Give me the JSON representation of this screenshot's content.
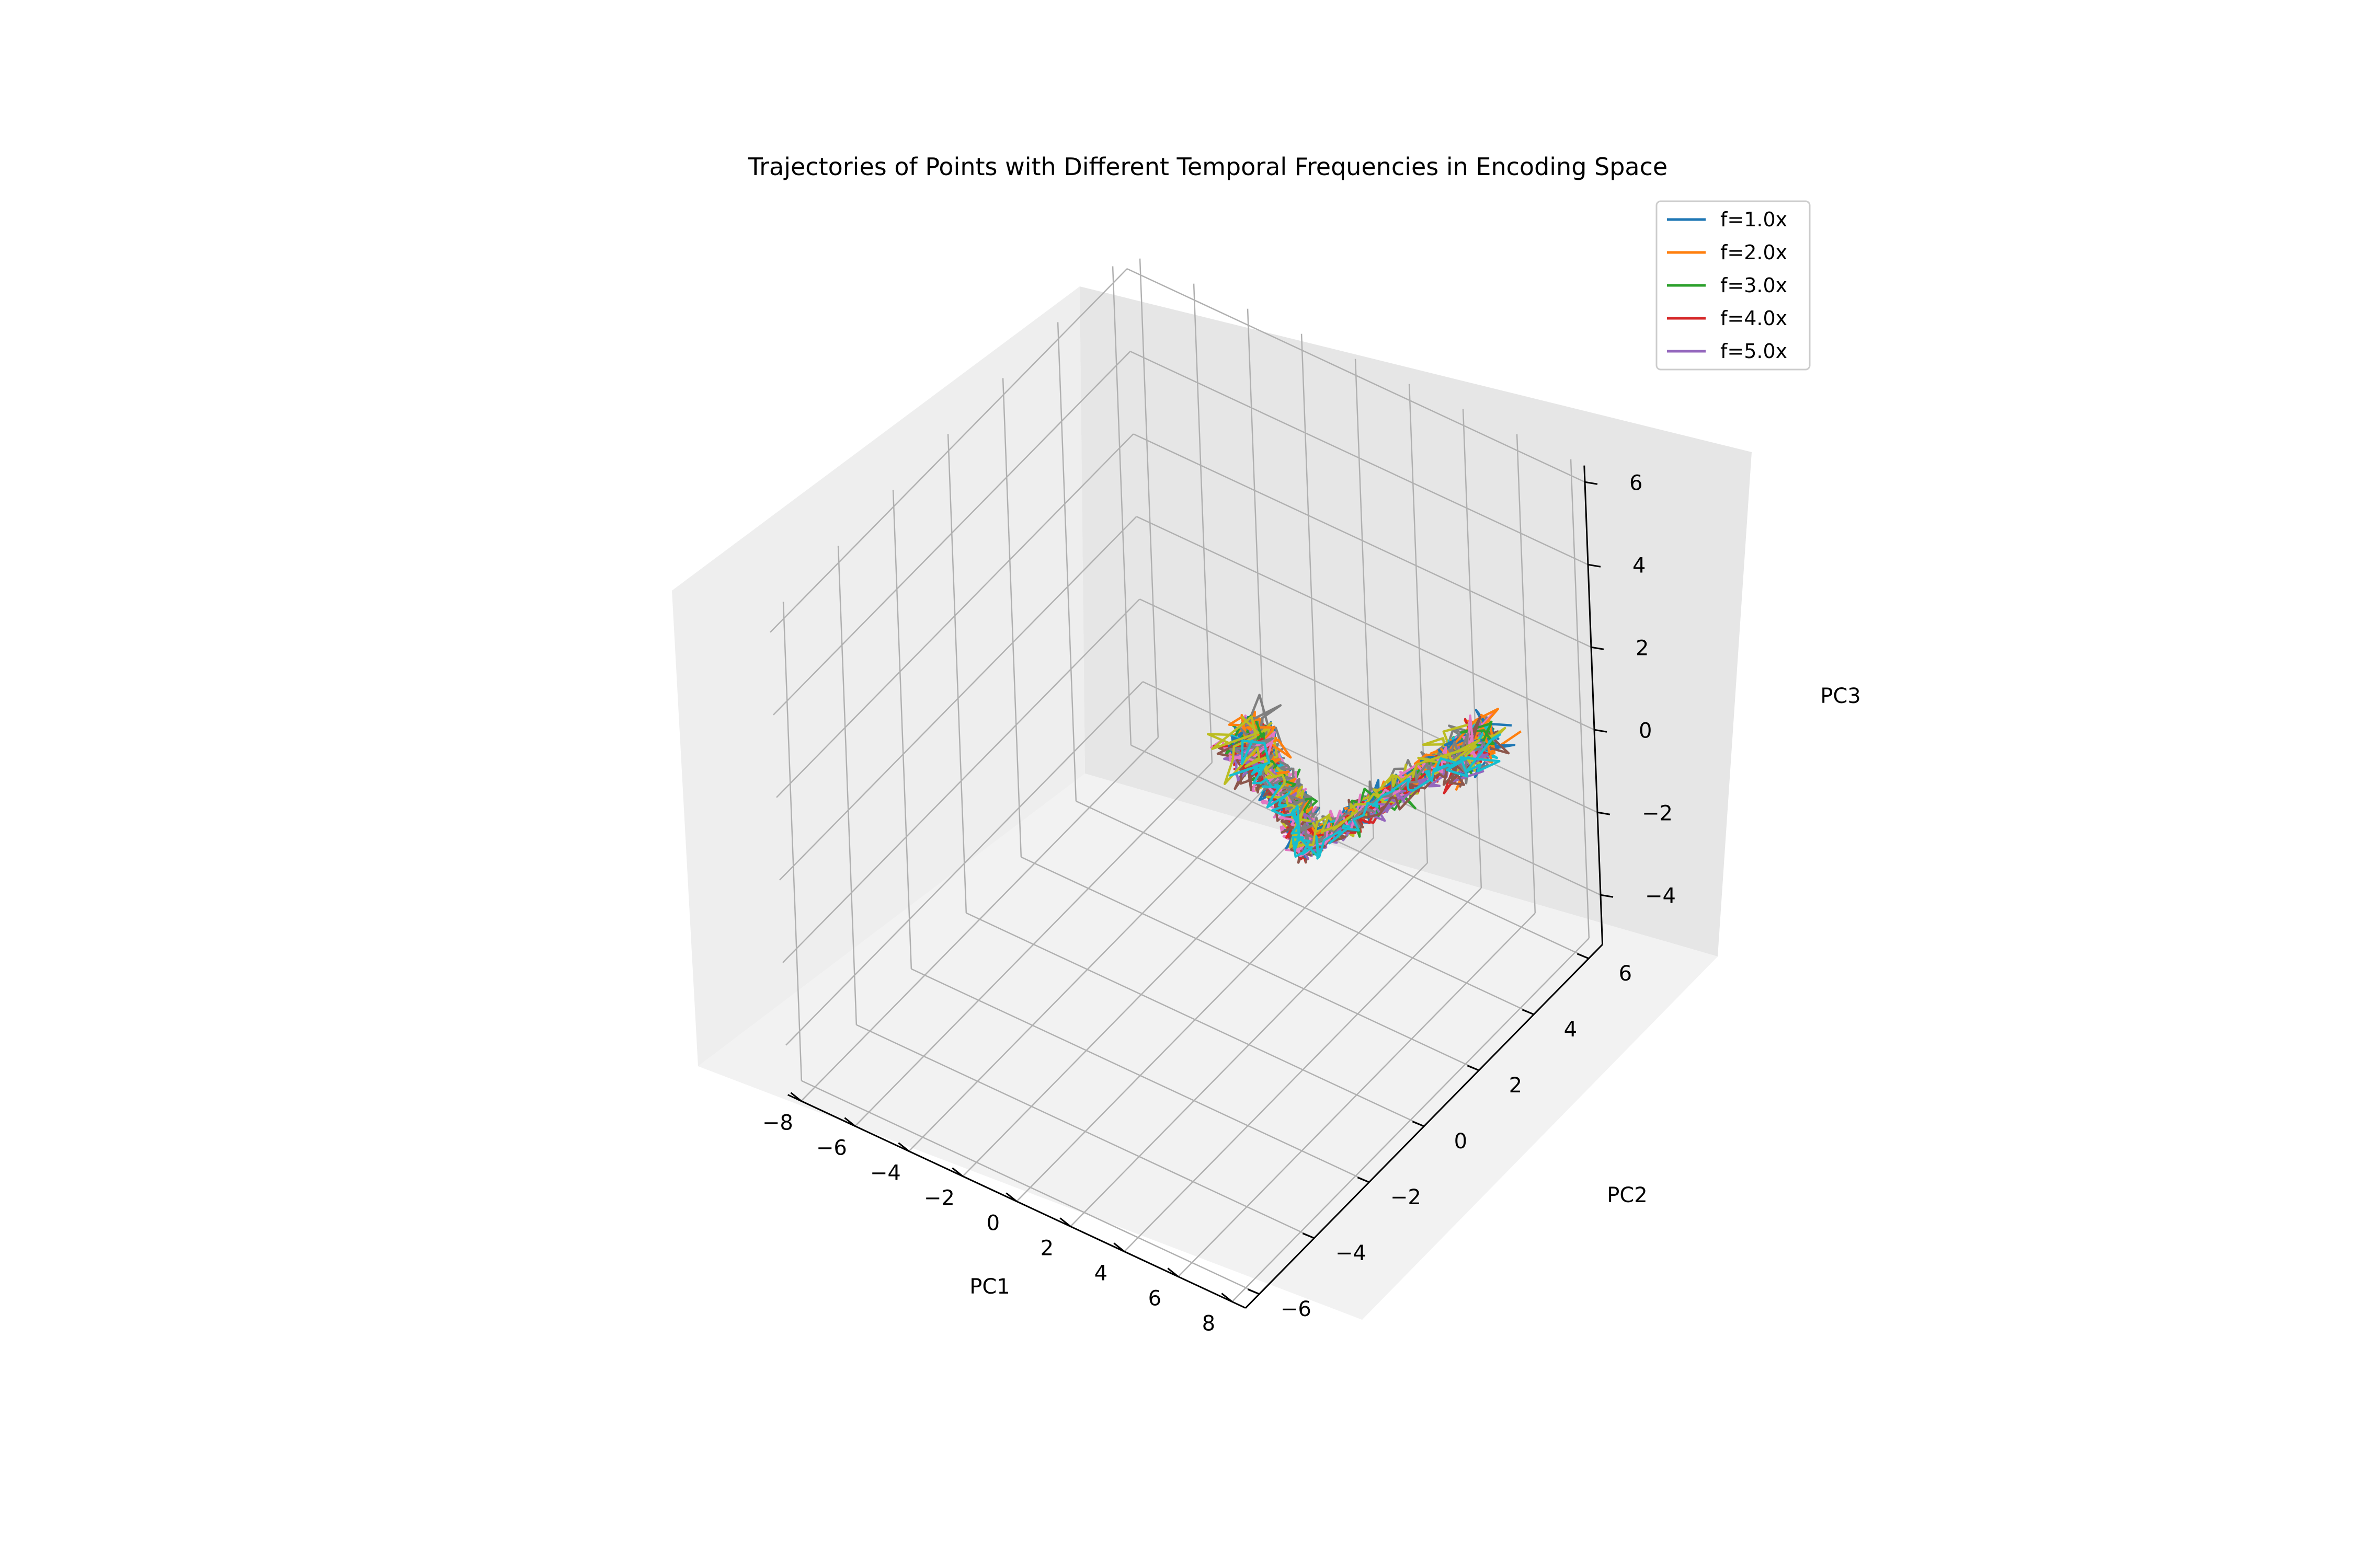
{
  "chart_data": {
    "type": "line",
    "projection": "3d",
    "title": "Trajectories of Points with Different Temporal Frequencies in Encoding Space",
    "xlabel": "PC1",
    "ylabel": "PC2",
    "zlabel": "PC3",
    "xlim": [
      -8.5,
      8.5
    ],
    "ylim": [
      -6.5,
      6.5
    ],
    "zlim": [
      -5.2,
      6.4
    ],
    "xticks": [
      -8,
      -6,
      -4,
      -2,
      0,
      2,
      4,
      6,
      8
    ],
    "yticks": [
      -6,
      -4,
      -2,
      0,
      2,
      4,
      6
    ],
    "zticks": [
      -4,
      -2,
      0,
      2,
      4,
      6
    ],
    "xtick_labels": [
      "−8",
      "−6",
      "−4",
      "−2",
      "0",
      "2",
      "4",
      "6",
      "8"
    ],
    "ytick_labels": [
      "−6",
      "−4",
      "−2",
      "0",
      "2",
      "4",
      "6"
    ],
    "ztick_labels": [
      "−4",
      "−2",
      "0",
      "2",
      "4",
      "6"
    ],
    "grid": true,
    "legend_position": "top-right",
    "colors": [
      "#1f77b4",
      "#ff7f0e",
      "#2ca02c",
      "#d62728",
      "#9467bd",
      "#8c564b",
      "#e377c2",
      "#7f7f7f",
      "#bcbd22",
      "#17becf"
    ],
    "series": [
      {
        "name": "f=1.0x",
        "color": "#1f77b4"
      },
      {
        "name": "f=2.0x",
        "color": "#ff7f0e"
      },
      {
        "name": "f=3.0x",
        "color": "#2ca02c"
      },
      {
        "name": "f=4.0x",
        "color": "#d62728"
      },
      {
        "name": "f=5.0x",
        "color": "#9467bd"
      }
    ],
    "path_shape": [
      {
        "x": -3.0,
        "y": 5.0,
        "z": -2.6
      },
      {
        "x": -1.0,
        "y": 4.0,
        "z": -2.3
      },
      {
        "x": 1.5,
        "y": 2.5,
        "z": -1.4
      },
      {
        "x": 3.5,
        "y": 1.0,
        "z": -0.6
      },
      {
        "x": 5.5,
        "y": 1.5,
        "z": 0.7
      },
      {
        "x": 6.5,
        "y": 3.0,
        "z": 1.0
      },
      {
        "x": 7.0,
        "y": 4.0,
        "z": 0.9
      }
    ]
  }
}
